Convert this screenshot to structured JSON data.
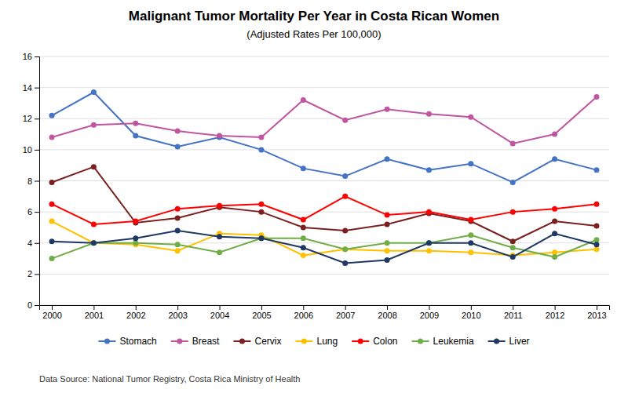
{
  "chart_data": {
    "type": "line",
    "title": "Malignant Tumor Mortality Per Year in Costa Rican Women",
    "subtitle": "(Adjusted Rates Per 100,000)",
    "annotations": [
      "Data Source: National Tumor Registry, Costa Rica Ministry of Health"
    ],
    "x": [
      2000,
      2001,
      2002,
      2003,
      2004,
      2005,
      2006,
      2007,
      2008,
      2009,
      2010,
      2011,
      2012,
      2013
    ],
    "xlim": [
      1999.7,
      2013.3
    ],
    "xticks": [
      2000,
      2001,
      2002,
      2003,
      2004,
      2005,
      2006,
      2007,
      2008,
      2009,
      2010,
      2011,
      2012,
      2013
    ],
    "ylim": [
      0,
      16
    ],
    "yticks": [
      0,
      2,
      4,
      6,
      8,
      10,
      12,
      14,
      16
    ],
    "grid": true,
    "legend": "bottom",
    "marker": "circle",
    "series": [
      {
        "name": "Stomach",
        "color": "#4472C4",
        "values": [
          12.2,
          13.7,
          10.9,
          10.2,
          10.8,
          10.0,
          8.8,
          8.3,
          9.4,
          8.7,
          9.1,
          7.9,
          9.4,
          8.7
        ]
      },
      {
        "name": "Breast",
        "color": "#C055A0",
        "values": [
          10.8,
          11.6,
          11.7,
          11.2,
          10.9,
          10.8,
          13.2,
          11.9,
          12.6,
          12.3,
          12.1,
          10.4,
          11.0,
          13.4
        ]
      },
      {
        "name": "Cervix",
        "color": "#7B2020",
        "values": [
          7.9,
          8.9,
          5.3,
          5.6,
          6.3,
          6.0,
          5.0,
          4.8,
          5.2,
          5.9,
          5.4,
          4.1,
          5.4,
          5.1
        ]
      },
      {
        "name": "Lung",
        "color": "#FFC000",
        "values": [
          5.4,
          4.0,
          3.9,
          3.5,
          4.6,
          4.5,
          3.2,
          3.6,
          3.5,
          3.5,
          3.4,
          3.2,
          3.4,
          3.6
        ]
      },
      {
        "name": "Colon",
        "color": "#FF0000",
        "values": [
          6.5,
          5.2,
          5.4,
          6.2,
          6.4,
          6.5,
          5.5,
          7.0,
          5.8,
          6.0,
          5.5,
          6.0,
          6.2,
          6.5
        ]
      },
      {
        "name": "Leukemia",
        "color": "#70AD47",
        "values": [
          3.0,
          4.0,
          4.0,
          3.9,
          3.4,
          4.3,
          4.3,
          3.6,
          4.0,
          4.0,
          4.5,
          3.7,
          3.1,
          4.2
        ]
      },
      {
        "name": "Liver",
        "color": "#1F3864",
        "values": [
          4.1,
          4.0,
          4.3,
          4.8,
          4.4,
          4.3,
          3.7,
          2.7,
          2.9,
          4.0,
          4.0,
          3.1,
          4.6,
          3.9
        ]
      }
    ]
  }
}
